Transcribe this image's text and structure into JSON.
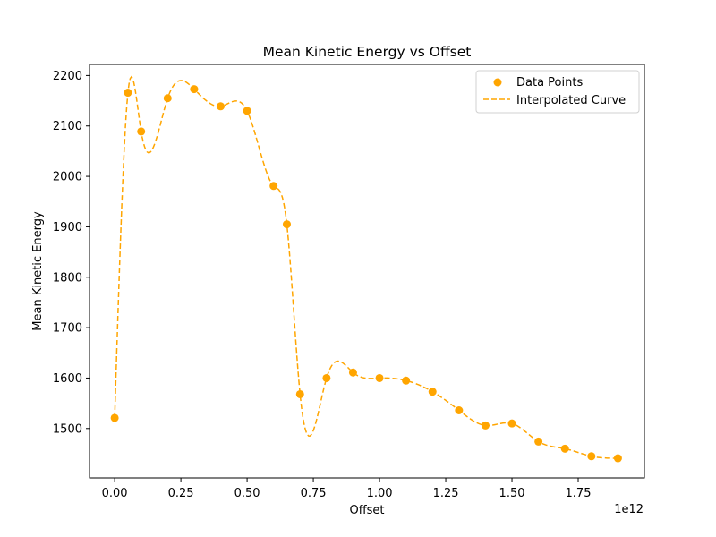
{
  "chart_data": {
    "type": "line",
    "title": "Mean Kinetic Energy vs Offset",
    "xlabel": "Offset",
    "ylabel": "Mean Kinetic Energy",
    "x_offset_label": "1e12",
    "xlim": [
      -0.095,
      2.0
    ],
    "ylim": [
      1402,
      2222
    ],
    "xticks": [
      0.0,
      0.25,
      0.5,
      0.75,
      1.0,
      1.25,
      1.5,
      1.75
    ],
    "xtick_labels": [
      "0.00",
      "0.25",
      "0.50",
      "0.75",
      "1.00",
      "1.25",
      "1.50",
      "1.75"
    ],
    "yticks": [
      1500,
      1600,
      1700,
      1800,
      1900,
      2000,
      2100,
      2200
    ],
    "ytick_labels": [
      "1500",
      "1600",
      "1700",
      "1800",
      "1900",
      "2000",
      "2100",
      "2200"
    ],
    "grid": false,
    "legend_position": "top-right",
    "colors": {
      "series": "#ffa500"
    },
    "series": [
      {
        "name": "Data Points",
        "kind": "scatter",
        "x": [
          0.0,
          0.05,
          0.1,
          0.2,
          0.3,
          0.4,
          0.5,
          0.6,
          0.65,
          0.7,
          0.8,
          0.9,
          1.0,
          1.1,
          1.2,
          1.3,
          1.4,
          1.5,
          1.6,
          1.7,
          1.8,
          1.9
        ],
        "y": [
          1521,
          2166,
          2089,
          2155,
          2173,
          2139,
          2130,
          1981,
          1905,
          1568,
          1600,
          1611,
          1600,
          1595,
          1573,
          1536,
          1506,
          1510,
          1474,
          1460,
          1445,
          1441
        ]
      },
      {
        "name": "Interpolated Curve",
        "kind": "line",
        "style": "dashed",
        "x": [
          0.0,
          0.05,
          0.1,
          0.2,
          0.3,
          0.4,
          0.5,
          0.6,
          0.65,
          0.7,
          0.8,
          0.9,
          1.0,
          1.1,
          1.2,
          1.3,
          1.4,
          1.5,
          1.6,
          1.7,
          1.8,
          1.9
        ],
        "y": [
          1521,
          2166,
          2089,
          2155,
          2173,
          2139,
          2130,
          1981,
          1905,
          1568,
          1600,
          1611,
          1600,
          1595,
          1573,
          1536,
          1506,
          1510,
          1474,
          1460,
          1445,
          1441
        ]
      }
    ]
  }
}
